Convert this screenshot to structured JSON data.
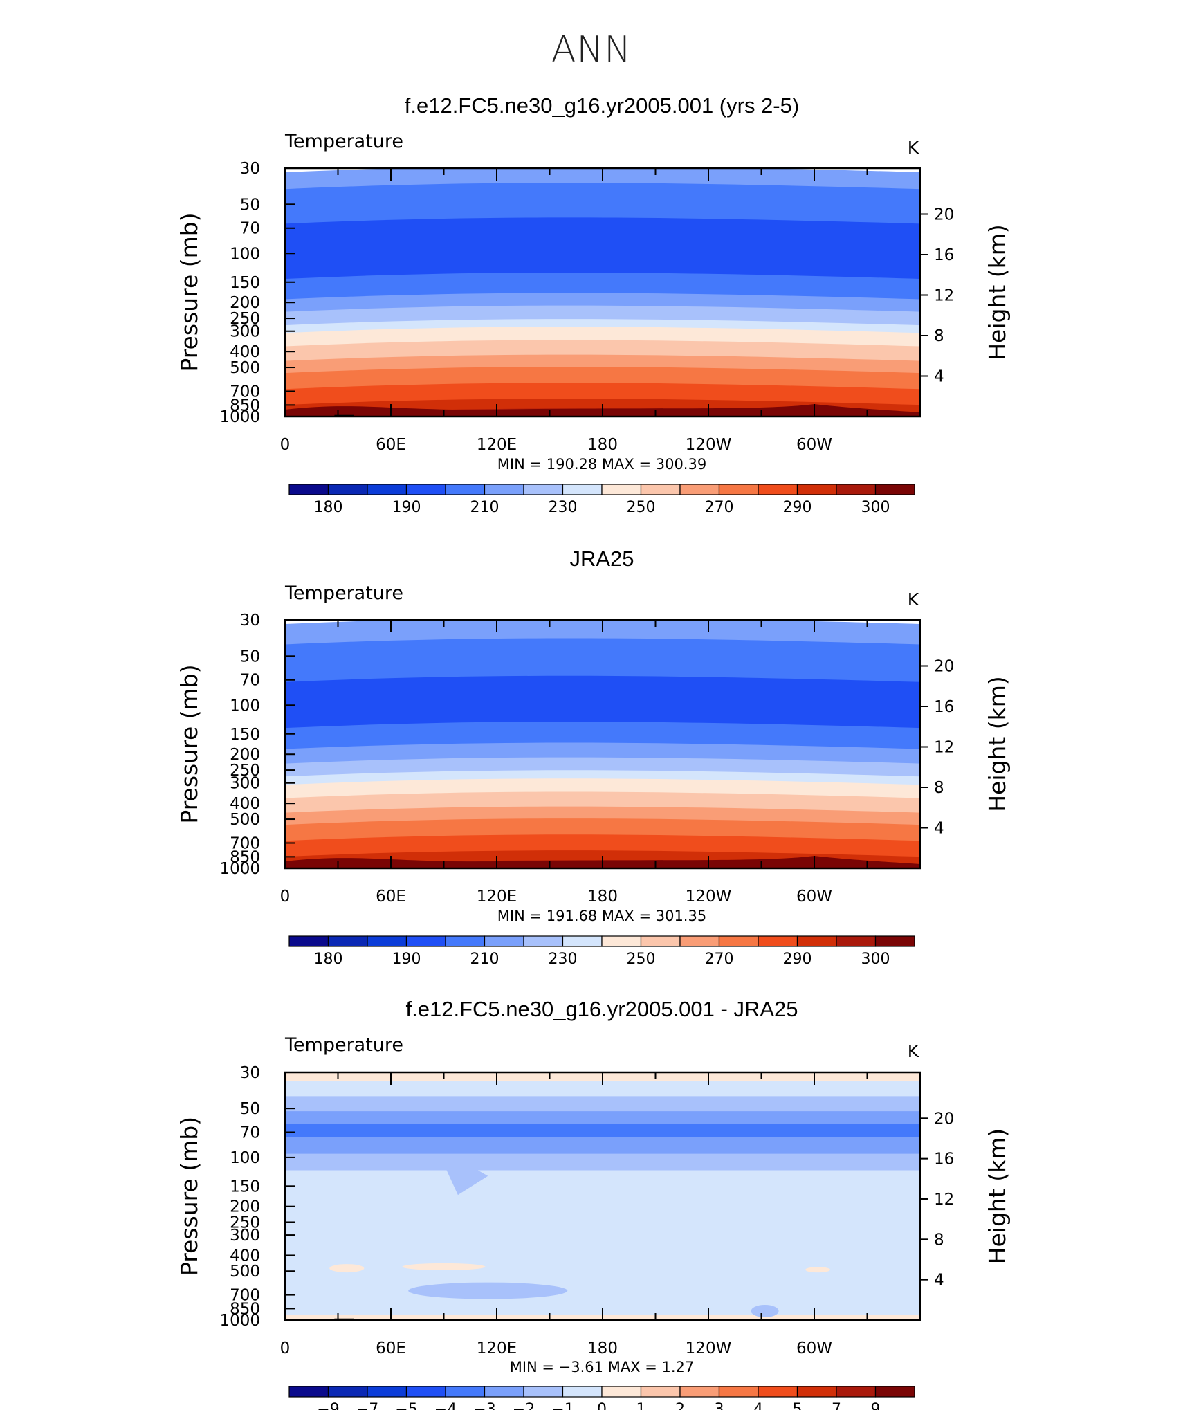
{
  "title": "ANN",
  "colors": {
    "abs_palette": [
      "#0a0a8c",
      "#0a28b4",
      "#0b3cd8",
      "#1f4ff5",
      "#4479fb",
      "#7aa0fb",
      "#a8c1fb",
      "#d4e5fc",
      "#fde8d8",
      "#fbc6ac",
      "#f99d76",
      "#f67744",
      "#f04d1c",
      "#d12f08",
      "#a9190b",
      "#7a0505"
    ],
    "diff_palette": [
      "#0a0a8c",
      "#0a28b4",
      "#0b3cd8",
      "#1f4ff5",
      "#4479fb",
      "#7aa0fb",
      "#a8c1fb",
      "#d4e5fc",
      "#fde8d8",
      "#fbc6ac",
      "#f99d76",
      "#f67744",
      "#f04d1c",
      "#d12f08",
      "#a9190b",
      "#7a0505"
    ]
  },
  "chart_data": [
    {
      "type": "heatmap",
      "title": "f.e12.FC5.ne30_g16.yr2005.001 (yrs 2-5)",
      "variable_label": "Temperature",
      "units": "K",
      "ylabel": "Pressure (mb)",
      "ylabel_right": "Height (km)",
      "x_tick_labels": [
        "0",
        "60E",
        "120E",
        "180",
        "120W",
        "60W"
      ],
      "y_ticks": [
        30,
        50,
        70,
        100,
        150,
        200,
        250,
        300,
        400,
        500,
        700,
        850,
        1000
      ],
      "y_right_ticks": [
        4,
        8,
        12,
        16,
        20
      ],
      "min_max": "MIN = 190.28   MAX = 300.39",
      "colorbar_labels": [
        "180",
        "190",
        "210",
        "230",
        "250",
        "270",
        "290",
        "300"
      ],
      "levels": [
        175,
        180,
        185,
        190,
        200,
        210,
        220,
        230,
        240,
        250,
        260,
        270,
        280,
        290,
        295,
        300
      ],
      "bands": [
        {
          "p_top": 30,
          "p_bot": 38,
          "color_index": 5
        },
        {
          "p_top": 38,
          "p_bot": 62,
          "color_index": 4
        },
        {
          "p_top": 62,
          "p_bot": 135,
          "color_index": 3
        },
        {
          "p_top": 135,
          "p_bot": 180,
          "color_index": 4
        },
        {
          "p_top": 180,
          "p_bot": 215,
          "color_index": 5
        },
        {
          "p_top": 215,
          "p_bot": 260,
          "color_index": 6
        },
        {
          "p_top": 260,
          "p_bot": 290,
          "color_index": 7
        },
        {
          "p_top": 290,
          "p_bot": 350,
          "color_index": 8
        },
        {
          "p_top": 350,
          "p_bot": 430,
          "color_index": 9
        },
        {
          "p_top": 430,
          "p_bot": 510,
          "color_index": 10
        },
        {
          "p_top": 510,
          "p_bot": 640,
          "color_index": 11
        },
        {
          "p_top": 640,
          "p_bot": 800,
          "color_index": 12
        },
        {
          "p_top": 800,
          "p_bot": 920,
          "color_index": 13
        },
        {
          "p_top": 920,
          "p_bot": 1000,
          "color_index": 14
        }
      ],
      "terrain": true
    },
    {
      "type": "heatmap",
      "title": "JRA25",
      "variable_label": "Temperature",
      "units": "K",
      "ylabel": "Pressure (mb)",
      "ylabel_right": "Height (km)",
      "x_tick_labels": [
        "0",
        "60E",
        "120E",
        "180",
        "120W",
        "60W"
      ],
      "y_ticks": [
        30,
        50,
        70,
        100,
        150,
        200,
        250,
        300,
        400,
        500,
        700,
        850,
        1000
      ],
      "y_right_ticks": [
        4,
        8,
        12,
        16,
        20
      ],
      "min_max": "MIN = 191.68   MAX = 301.35",
      "colorbar_labels": [
        "180",
        "190",
        "210",
        "230",
        "250",
        "270",
        "290",
        "300"
      ],
      "levels": [
        175,
        180,
        185,
        190,
        200,
        210,
        220,
        230,
        240,
        250,
        260,
        270,
        280,
        290,
        295,
        300
      ],
      "bands": [
        {
          "p_top": 30,
          "p_bot": 40,
          "color_index": 5
        },
        {
          "p_top": 40,
          "p_bot": 68,
          "color_index": 4
        },
        {
          "p_top": 68,
          "p_bot": 130,
          "color_index": 3
        },
        {
          "p_top": 130,
          "p_bot": 175,
          "color_index": 4
        },
        {
          "p_top": 175,
          "p_bot": 215,
          "color_index": 5
        },
        {
          "p_top": 215,
          "p_bot": 258,
          "color_index": 6
        },
        {
          "p_top": 258,
          "p_bot": 290,
          "color_index": 7
        },
        {
          "p_top": 290,
          "p_bot": 350,
          "color_index": 8
        },
        {
          "p_top": 350,
          "p_bot": 430,
          "color_index": 9
        },
        {
          "p_top": 430,
          "p_bot": 510,
          "color_index": 10
        },
        {
          "p_top": 510,
          "p_bot": 640,
          "color_index": 11
        },
        {
          "p_top": 640,
          "p_bot": 800,
          "color_index": 12
        },
        {
          "p_top": 800,
          "p_bot": 920,
          "color_index": 13
        },
        {
          "p_top": 920,
          "p_bot": 1000,
          "color_index": 14
        }
      ],
      "terrain": false
    },
    {
      "type": "heatmap",
      "title": "f.e12.FC5.ne30_g16.yr2005.001 - JRA25",
      "variable_label": "Temperature",
      "units": "K",
      "ylabel": "Pressure (mb)",
      "ylabel_right": "Height (km)",
      "x_tick_labels": [
        "0",
        "60E",
        "120E",
        "180",
        "120W",
        "60W"
      ],
      "y_ticks": [
        30,
        50,
        70,
        100,
        150,
        200,
        250,
        300,
        400,
        500,
        700,
        850,
        1000
      ],
      "y_right_ticks": [
        4,
        8,
        12,
        16,
        20
      ],
      "min_max": "MIN =   −3.61   MAX =     1.27",
      "colorbar_labels": [
        "−9",
        "−7",
        "−5",
        "−4",
        "−3",
        "−2",
        "−1",
        "0",
        "1",
        "2",
        "3",
        "4",
        "5",
        "7",
        "9"
      ],
      "levels": [
        -9,
        -7,
        -5,
        -4,
        -3,
        -2,
        -1,
        0,
        1,
        2,
        3,
        4,
        5,
        7,
        9
      ],
      "bands": [
        {
          "p_top": 30,
          "p_bot": 34,
          "color_index": 8
        },
        {
          "p_top": 34,
          "p_bot": 42,
          "color_index": 7
        },
        {
          "p_top": 42,
          "p_bot": 52,
          "color_index": 6
        },
        {
          "p_top": 52,
          "p_bot": 62,
          "color_index": 5
        },
        {
          "p_top": 62,
          "p_bot": 75,
          "color_index": 4
        },
        {
          "p_top": 75,
          "p_bot": 95,
          "color_index": 5
        },
        {
          "p_top": 95,
          "p_bot": 120,
          "color_index": 6
        },
        {
          "p_top": 120,
          "p_bot": 930,
          "color_index": 7
        },
        {
          "p_top": 930,
          "p_bot": 1000,
          "color_index": 8
        }
      ],
      "terrain": true
    }
  ]
}
